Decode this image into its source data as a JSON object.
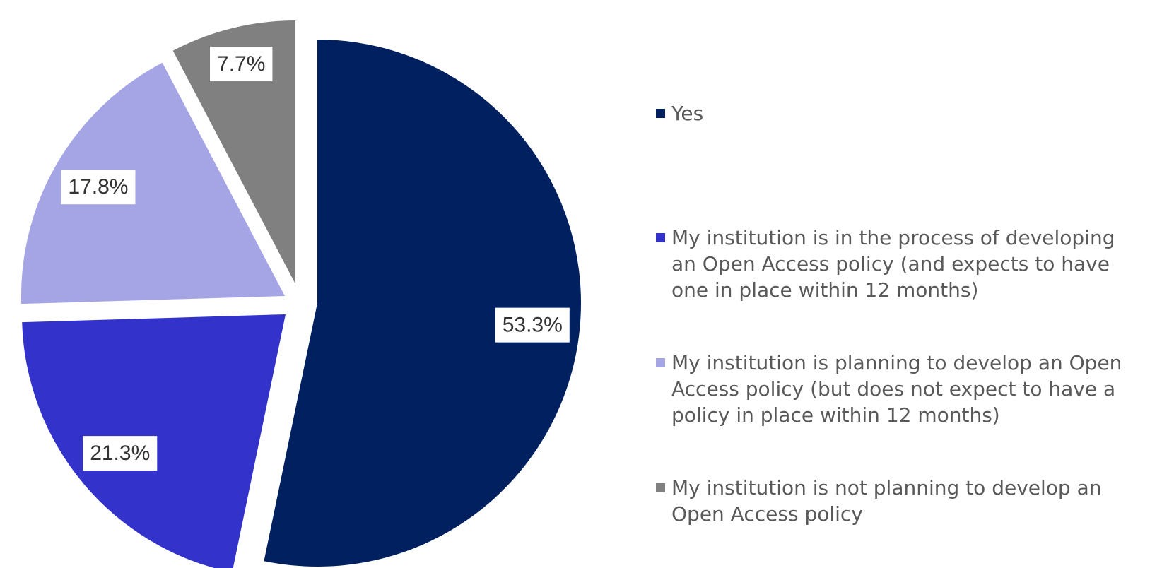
{
  "chart_data": {
    "type": "pie",
    "title": "",
    "exploded": true,
    "start_angle_deg": 0,
    "direction": "clockwise",
    "legend_position": "right",
    "series": [
      {
        "values": [
          53.3,
          21.3,
          17.8,
          7.7
        ],
        "labels": [
          "53.3%",
          "21.3%",
          "17.8%",
          "7.7%"
        ]
      }
    ],
    "categories": [
      "Yes",
      "My institution is in the process of developing\nan Open Access policy (and expects to have\none in place within 12 months)",
      "My institution is planning to develop an Open\nAccess policy (but does not expect to have a\npolicy in place within 12 months)",
      "My institution is not planning to develop an\nOpen Access policy"
    ],
    "colors": [
      "#002060",
      "#3333CC",
      "#A5A5E6",
      "#808080"
    ]
  }
}
